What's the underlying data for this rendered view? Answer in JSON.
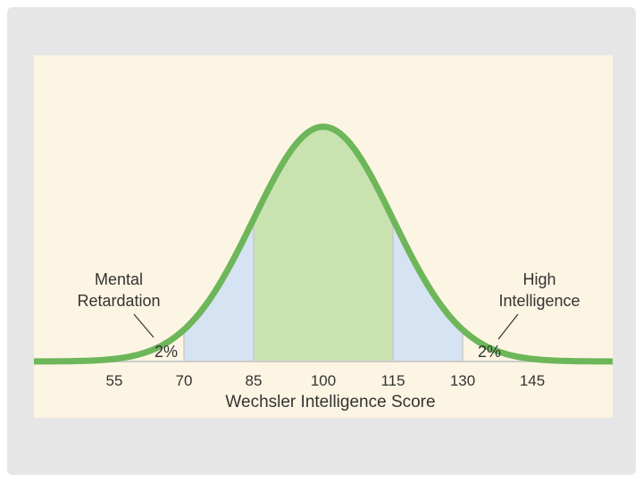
{
  "chart_data": {
    "type": "area",
    "curve": "normal",
    "mean": 100,
    "sd": 15,
    "xlabel": "Wechsler Intelligence Score",
    "ylabel": "",
    "title": "",
    "xlim": [
      28,
      183
    ],
    "x_ticks": [
      55,
      70,
      85,
      100,
      115,
      130,
      145
    ],
    "tick_labels": [
      "55",
      "70",
      "85",
      "100",
      "115",
      "130",
      "145"
    ],
    "shaded_regions": [
      {
        "from": 70,
        "to": 85,
        "color": "#d5e3f2"
      },
      {
        "from": 85,
        "to": 115,
        "color": "#c9e3b0"
      },
      {
        "from": 115,
        "to": 130,
        "color": "#d5e3f2"
      }
    ],
    "annotations": [
      {
        "text_lines": [
          "Mental",
          "Retardation"
        ],
        "percent": "2%",
        "side": "left"
      },
      {
        "text_lines": [
          "High",
          "Intelligence"
        ],
        "percent": "2%",
        "side": "right"
      }
    ],
    "curve_color": "#6db65a",
    "grid": false
  }
}
